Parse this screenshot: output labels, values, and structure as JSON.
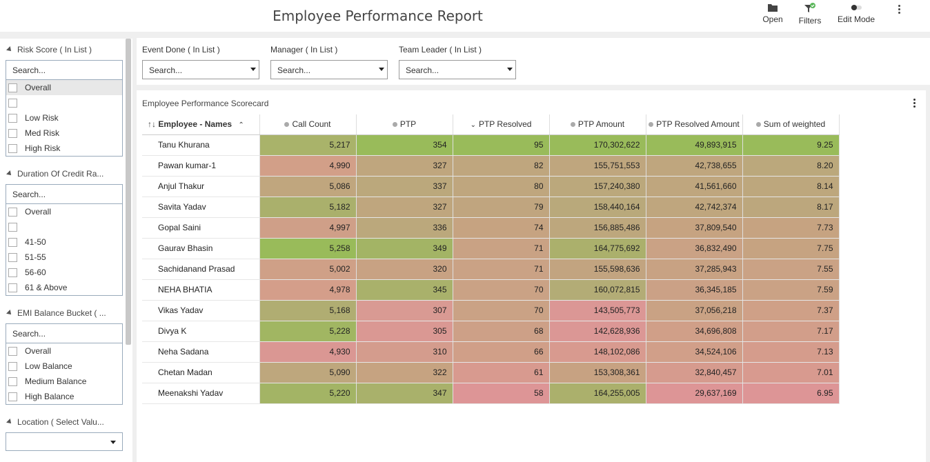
{
  "header": {
    "title": "Employee Performance Report",
    "open_label": "Open",
    "filters_label": "Filters",
    "edit_mode_label": "Edit Mode"
  },
  "sidebar": {
    "risk": {
      "title": "Risk Score ( In List )",
      "search": "Search...",
      "items": [
        "Overall",
        "",
        "Low Risk",
        "Med Risk",
        "High Risk"
      ]
    },
    "duration": {
      "title": "Duration Of Credit Ra...",
      "search": "Search...",
      "items": [
        "Overall",
        "",
        "41-50",
        "51-55",
        "56-60",
        "61 & Above"
      ]
    },
    "emi": {
      "title": "EMI Balance Bucket ( ...",
      "search": "Search...",
      "items": [
        "Overall",
        "Low Balance",
        "Medium Balance",
        "High Balance"
      ]
    },
    "location": {
      "title": "Location ( Select Valu...",
      "value": ""
    }
  },
  "filters": {
    "event_done": {
      "label": "Event Done ( In List )",
      "value": "Search..."
    },
    "manager": {
      "label": "Manager ( In List )",
      "value": "Search..."
    },
    "team_leader": {
      "label": "Team Leader ( In List )",
      "value": "Search..."
    }
  },
  "scorecard": {
    "title": "Employee Performance Scorecard",
    "columns": [
      "Employee - Names",
      "Call Count",
      "PTP",
      "PTP Resolved",
      "PTP Amount",
      "PTP Resolved Amount",
      "Sum of weighted"
    ],
    "rows": [
      {
        "name": "Tanu Khurana",
        "values": [
          "5,217",
          "354",
          "95",
          "170,302,622",
          "49,893,915",
          "9.25"
        ],
        "colors": [
          "#a9b36a",
          "#99bb5a",
          "#99bb5a",
          "#99bb5a",
          "#99bb5a",
          "#99bb5a"
        ]
      },
      {
        "name": "Pawan kumar-1",
        "values": [
          "4,990",
          "327",
          "82",
          "155,751,553",
          "42,738,655",
          "8.20"
        ],
        "colors": [
          "#d29f88",
          "#bfa67e",
          "#bfa67e",
          "#bfa67e",
          "#bfa67e",
          "#bba87c"
        ]
      },
      {
        "name": "Anjul Thakur",
        "values": [
          "5,086",
          "337",
          "80",
          "157,240,380",
          "41,561,660",
          "8.14"
        ],
        "colors": [
          "#c0a67e",
          "#bba87c",
          "#bfa67e",
          "#bba87c",
          "#bfa67e",
          "#bda77d"
        ]
      },
      {
        "name": "Savita Yadav",
        "values": [
          "5,182",
          "327",
          "79",
          "158,440,164",
          "42,742,374",
          "8.17"
        ],
        "colors": [
          "#aab06c",
          "#bfa67e",
          "#c0a57f",
          "#b9a97b",
          "#bfa67e",
          "#bca77d"
        ]
      },
      {
        "name": "Gopal Saini",
        "values": [
          "4,997",
          "336",
          "74",
          "156,885,486",
          "37,809,540",
          "7.73"
        ],
        "colors": [
          "#cf9f88",
          "#bba87c",
          "#c6a381",
          "#bda77d",
          "#c6a381",
          "#c6a381"
        ]
      },
      {
        "name": "Gaurav Bhasin",
        "values": [
          "5,258",
          "349",
          "71",
          "164,775,692",
          "36,832,490",
          "7.75"
        ],
        "colors": [
          "#99bb5a",
          "#a3b465",
          "#c9a284",
          "#abb06c",
          "#caa285",
          "#c6a381"
        ]
      },
      {
        "name": "Sachidanand Prasad",
        "values": [
          "5,002",
          "320",
          "71",
          "155,598,636",
          "37,285,943",
          "7.55"
        ],
        "colors": [
          "#cfa087",
          "#c8a283",
          "#caa285",
          "#c2a480",
          "#c8a283",
          "#caa285"
        ]
      },
      {
        "name": "NEHA BHATIA",
        "values": [
          "4,978",
          "345",
          "70",
          "160,072,815",
          "36,345,185",
          "7.59"
        ],
        "colors": [
          "#d49e8a",
          "#a9b16b",
          "#caa285",
          "#b3ac76",
          "#cba186",
          "#caa285"
        ]
      },
      {
        "name": "Vikas Yadav",
        "values": [
          "5,168",
          "307",
          "70",
          "143,505,773",
          "37,056,218",
          "7.37"
        ],
        "colors": [
          "#b0ad72",
          "#d99a93",
          "#caa285",
          "#db9795",
          "#c9a284",
          "#cfa087"
        ]
      },
      {
        "name": "Divya K",
        "values": [
          "5,228",
          "305",
          "68",
          "142,628,936",
          "34,696,808",
          "7.17"
        ],
        "colors": [
          "#a1b662",
          "#da9893",
          "#cda087",
          "#db9795",
          "#d09f88",
          "#d29e8a"
        ]
      },
      {
        "name": "Neha Sadana",
        "values": [
          "4,930",
          "310",
          "66",
          "148,102,086",
          "34,524,106",
          "7.13"
        ],
        "colors": [
          "#da9793",
          "#d49c8d",
          "#d09f88",
          "#d89a8f",
          "#d19f89",
          "#d59c8c"
        ]
      },
      {
        "name": "Chetan Madan",
        "values": [
          "5,090",
          "322",
          "61",
          "153,308,361",
          "32,840,457",
          "7.01"
        ],
        "colors": [
          "#bea77d",
          "#c6a381",
          "#d89a8f",
          "#c7a282",
          "#d69b8e",
          "#d89a8f"
        ]
      },
      {
        "name": "Meenakshi Yadav",
        "values": [
          "5,220",
          "347",
          "58",
          "164,255,005",
          "29,637,169",
          "6.95"
        ],
        "colors": [
          "#a3b465",
          "#a9b16b",
          "#dd9596",
          "#abb06c",
          "#dd9596",
          "#dd9596"
        ]
      }
    ]
  }
}
